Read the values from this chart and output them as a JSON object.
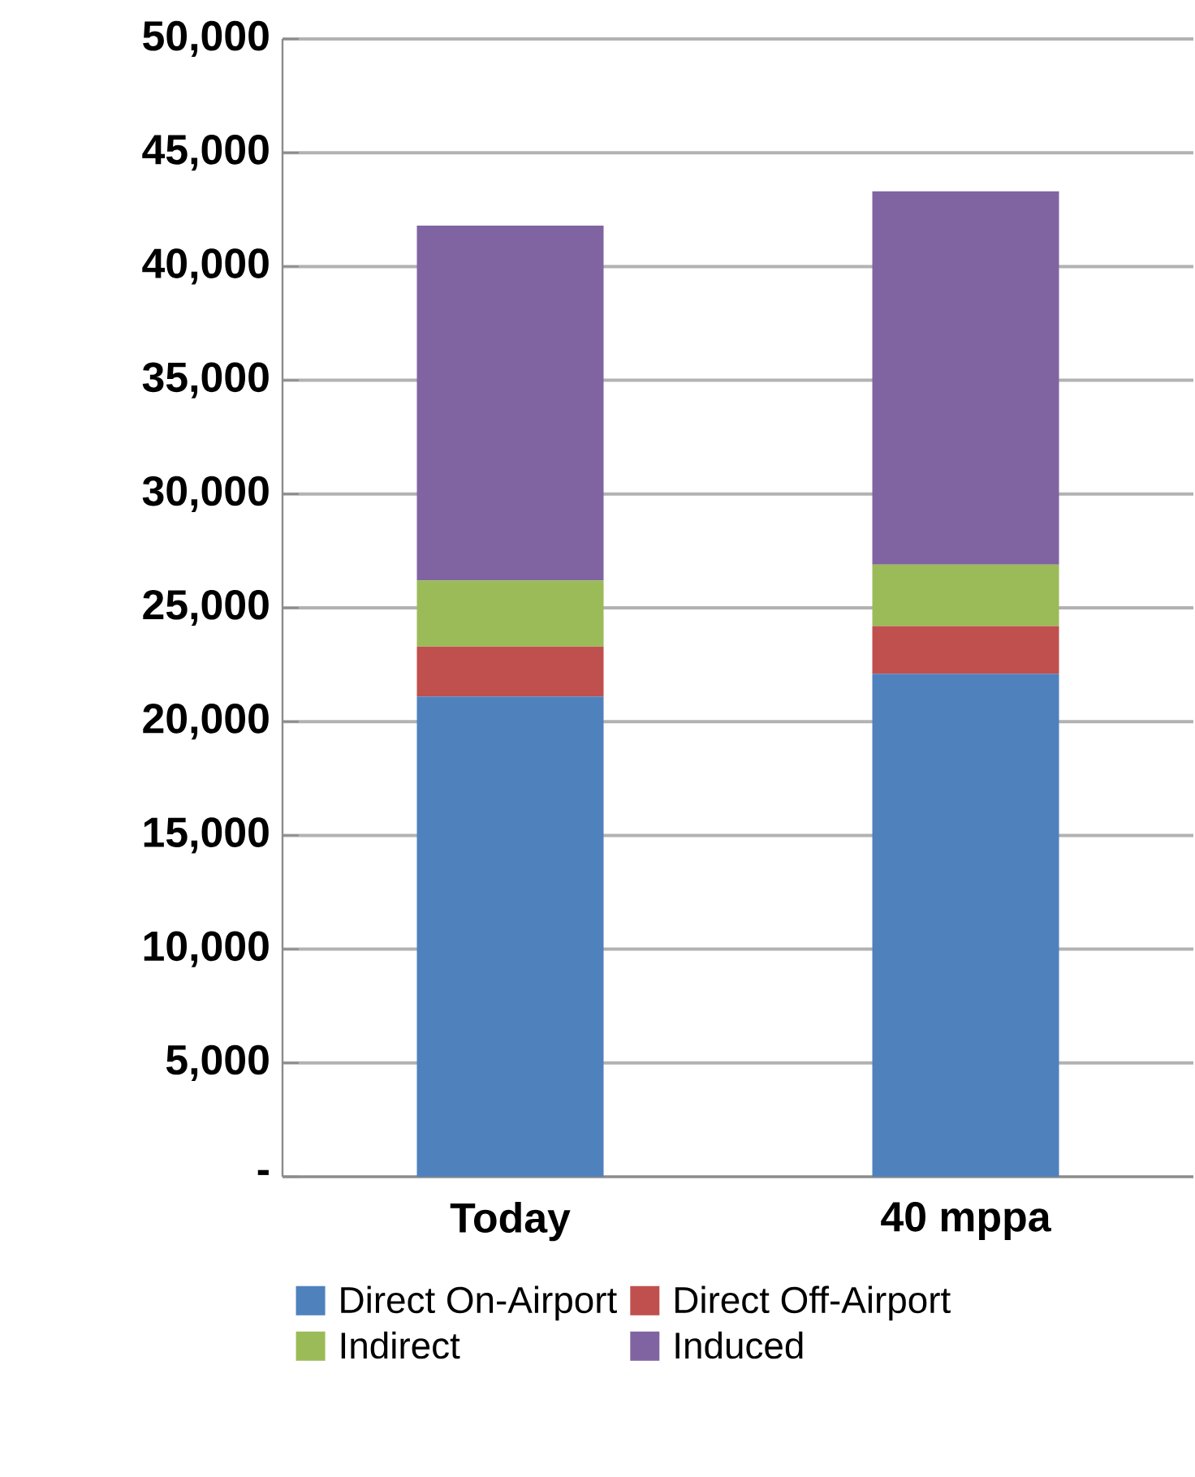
{
  "chart_data": {
    "type": "bar",
    "stacked": true,
    "categories": [
      "Today",
      "40 mppa"
    ],
    "series": [
      {
        "name": "Direct On-Airport",
        "color": "#4f81bd",
        "values": [
          21100,
          22100
        ]
      },
      {
        "name": "Direct Off-Airport",
        "color": "#c0504d",
        "values": [
          2200,
          2100
        ]
      },
      {
        "name": "Indirect",
        "color": "#9bbb59",
        "values": [
          2900,
          2700
        ]
      },
      {
        "name": "Induced",
        "color": "#8064a2",
        "values": [
          15600,
          16400
        ]
      }
    ],
    "ylim": [
      0,
      50000
    ],
    "yticks": [
      {
        "value": 0,
        "label": "-"
      },
      {
        "value": 5000,
        "label": "5,000"
      },
      {
        "value": 10000,
        "label": "10,000"
      },
      {
        "value": 15000,
        "label": "15,000"
      },
      {
        "value": 20000,
        "label": "20,000"
      },
      {
        "value": 25000,
        "label": "25,000"
      },
      {
        "value": 30000,
        "label": "30,000"
      },
      {
        "value": 35000,
        "label": "35,000"
      },
      {
        "value": 40000,
        "label": "40,000"
      },
      {
        "value": 45000,
        "label": "45,000"
      },
      {
        "value": 50000,
        "label": "50,000"
      }
    ],
    "grid": "y",
    "legend": "bottom"
  }
}
